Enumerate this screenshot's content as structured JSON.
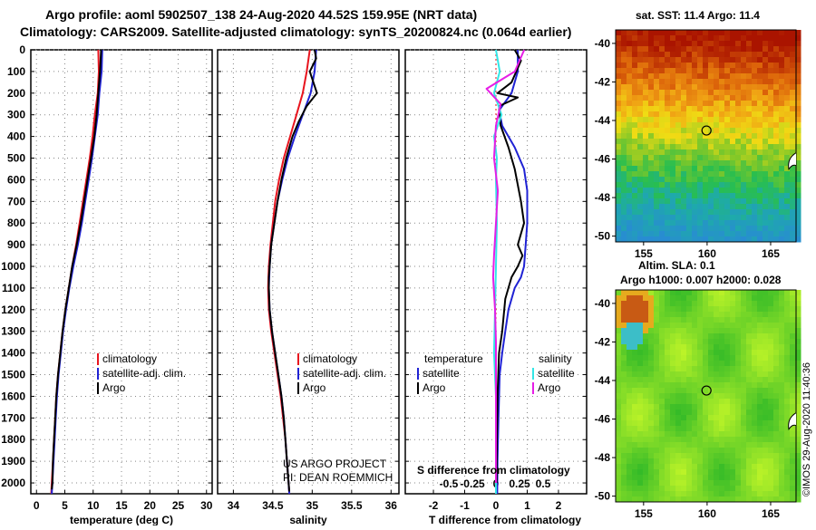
{
  "header": {
    "line1": "Argo profile: aoml 5902507_138 24-Aug-2020 44.52S 159.95E (NRT data)",
    "line2": "Climatology: CARS2009. Satellite-adjusted climatology: synTS_20200824.nc (0.064d earlier)"
  },
  "y_axis": {
    "ticks": [
      "0",
      "100",
      "200",
      "300",
      "400",
      "500",
      "600",
      "700",
      "800",
      "900",
      "1000",
      "1100",
      "1200",
      "1300",
      "1400",
      "1500",
      "1600",
      "1700",
      "1800",
      "1900",
      "2000"
    ]
  },
  "colors": {
    "climatology": "#e8141e",
    "satellite": "#1f22d4",
    "argo": "#000000",
    "sal_satellite": "#33e6e6",
    "sal_argo": "#e61ee6"
  },
  "chart_data": [
    {
      "type": "line",
      "panel": "temperature",
      "xlabel": "temperature (deg C)",
      "xlim": [
        -1,
        31
      ],
      "ylim": [
        2050,
        0
      ],
      "x_ticks": [
        "0",
        "5",
        "10",
        "15",
        "20",
        "25",
        "30"
      ],
      "legend": [
        "climatology",
        "satellite-adj. clim.",
        "Argo"
      ],
      "series": [
        {
          "name": "climatology",
          "points": [
            [
              10.9,
              0
            ],
            [
              11.0,
              100
            ],
            [
              10.8,
              200
            ],
            [
              10.3,
              300
            ],
            [
              9.9,
              400
            ],
            [
              9.4,
              500
            ],
            [
              8.8,
              600
            ],
            [
              8.2,
              700
            ],
            [
              7.6,
              800
            ],
            [
              7.0,
              900
            ],
            [
              6.3,
              1000
            ],
            [
              5.7,
              1100
            ],
            [
              5.1,
              1200
            ],
            [
              4.6,
              1300
            ],
            [
              4.2,
              1400
            ],
            [
              3.8,
              1500
            ],
            [
              3.5,
              1600
            ],
            [
              3.3,
              1700
            ],
            [
              3.1,
              1800
            ],
            [
              2.9,
              1900
            ],
            [
              2.7,
              2000
            ],
            [
              2.6,
              2050
            ]
          ]
        },
        {
          "name": "satellite-adj. clim.",
          "points": [
            [
              11.6,
              0
            ],
            [
              11.5,
              100
            ],
            [
              11.1,
              200
            ],
            [
              10.8,
              300
            ],
            [
              10.3,
              400
            ],
            [
              9.8,
              500
            ],
            [
              9.2,
              600
            ],
            [
              8.6,
              700
            ],
            [
              8.0,
              800
            ],
            [
              7.3,
              900
            ],
            [
              6.5,
              1000
            ],
            [
              5.8,
              1100
            ],
            [
              5.2,
              1200
            ],
            [
              4.7,
              1300
            ],
            [
              4.3,
              1400
            ],
            [
              3.9,
              1500
            ],
            [
              3.6,
              1600
            ],
            [
              3.4,
              1700
            ],
            [
              3.2,
              1800
            ],
            [
              3.0,
              1900
            ],
            [
              2.8,
              2000
            ],
            [
              2.7,
              2050
            ]
          ]
        },
        {
          "name": "Argo",
          "points": [
            [
              11.4,
              0
            ],
            [
              11.3,
              50
            ],
            [
              11.2,
              100
            ],
            [
              10.9,
              200
            ],
            [
              10.6,
              300
            ],
            [
              10.2,
              400
            ],
            [
              9.6,
              500
            ],
            [
              9.0,
              600
            ],
            [
              8.4,
              700
            ],
            [
              7.8,
              800
            ],
            [
              7.1,
              900
            ],
            [
              6.3,
              1000
            ],
            [
              5.7,
              1100
            ],
            [
              5.1,
              1200
            ],
            [
              4.6,
              1300
            ],
            [
              4.2,
              1400
            ],
            [
              3.8,
              1500
            ],
            [
              3.5,
              1600
            ],
            [
              3.3,
              1700
            ],
            [
              3.1,
              1800
            ],
            [
              2.9,
              1900
            ],
            [
              2.8,
              2000
            ],
            [
              2.7,
              2030
            ]
          ]
        }
      ]
    },
    {
      "type": "line",
      "panel": "salinity",
      "xlabel": "salinity",
      "xlim": [
        33.8,
        36.1
      ],
      "ylim": [
        2050,
        0
      ],
      "x_ticks": [
        "34",
        "34.5",
        "35",
        "35.5",
        "36"
      ],
      "legend": [
        "climatology",
        "satellite-adj. clim.",
        "Argo"
      ],
      "annotation_lines": [
        "US ARGO PROJECT",
        "PI: DEAN ROEMMICH"
      ],
      "series": [
        {
          "name": "climatology",
          "points": [
            [
              34.97,
              0
            ],
            [
              34.93,
              100
            ],
            [
              34.88,
              200
            ],
            [
              34.8,
              300
            ],
            [
              34.72,
              400
            ],
            [
              34.64,
              500
            ],
            [
              34.58,
              600
            ],
            [
              34.53,
              700
            ],
            [
              34.5,
              800
            ],
            [
              34.47,
              900
            ],
            [
              34.45,
              1000
            ],
            [
              34.44,
              1100
            ],
            [
              34.45,
              1200
            ],
            [
              34.48,
              1300
            ],
            [
              34.52,
              1400
            ],
            [
              34.56,
              1500
            ],
            [
              34.6,
              1600
            ],
            [
              34.63,
              1700
            ],
            [
              34.66,
              1800
            ],
            [
              34.68,
              1900
            ],
            [
              34.7,
              2000
            ],
            [
              34.71,
              2050
            ]
          ]
        },
        {
          "name": "satellite-adj. clim.",
          "points": [
            [
              35.05,
              0
            ],
            [
              35.03,
              100
            ],
            [
              34.98,
              200
            ],
            [
              34.88,
              300
            ],
            [
              34.78,
              400
            ],
            [
              34.69,
              500
            ],
            [
              34.62,
              600
            ],
            [
              34.56,
              700
            ],
            [
              34.52,
              800
            ],
            [
              34.48,
              900
            ],
            [
              34.46,
              1000
            ],
            [
              34.45,
              1100
            ],
            [
              34.46,
              1200
            ],
            [
              34.49,
              1300
            ],
            [
              34.53,
              1400
            ],
            [
              34.57,
              1500
            ],
            [
              34.61,
              1600
            ],
            [
              34.64,
              1700
            ],
            [
              34.66,
              1800
            ],
            [
              34.68,
              1900
            ],
            [
              34.7,
              2000
            ],
            [
              34.71,
              2050
            ]
          ]
        },
        {
          "name": "Argo",
          "points": [
            [
              35.03,
              0
            ],
            [
              35.05,
              40
            ],
            [
              34.97,
              100
            ],
            [
              35.06,
              200
            ],
            [
              34.93,
              260
            ],
            [
              34.83,
              330
            ],
            [
              34.75,
              400
            ],
            [
              34.67,
              500
            ],
            [
              34.61,
              600
            ],
            [
              34.56,
              700
            ],
            [
              34.52,
              800
            ],
            [
              34.48,
              900
            ],
            [
              34.46,
              1000
            ],
            [
              34.45,
              1050
            ],
            [
              34.45,
              1100
            ],
            [
              34.46,
              1200
            ],
            [
              34.49,
              1300
            ],
            [
              34.53,
              1400
            ],
            [
              34.57,
              1500
            ],
            [
              34.61,
              1600
            ],
            [
              34.64,
              1700
            ],
            [
              34.66,
              1800
            ],
            [
              34.68,
              1900
            ],
            [
              34.7,
              2000
            ],
            [
              34.71,
              2040
            ]
          ]
        }
      ]
    },
    {
      "type": "line",
      "panel": "difference",
      "xlabel": "T difference from climatology",
      "second_xlabel": "S difference from climatology",
      "xlim": [
        -2.9,
        2.9
      ],
      "ylim": [
        2050,
        0
      ],
      "x_ticks": [
        "-2",
        "-1",
        "0",
        "1",
        "2"
      ],
      "s_ticks": [
        "-0.5",
        "-0.25",
        "0",
        "0.25",
        "0.5"
      ],
      "legend_headers": [
        "temperature",
        "salinity"
      ],
      "legend": [
        "satellite",
        "Argo",
        "satellite",
        "Argo"
      ],
      "series": [
        {
          "name": "temperature satellite",
          "points": [
            [
              0.7,
              0
            ],
            [
              0.7,
              100
            ],
            [
              0.5,
              200
            ],
            [
              0.1,
              280
            ],
            [
              0.2,
              350
            ],
            [
              0.6,
              450
            ],
            [
              0.9,
              550
            ],
            [
              1.0,
              650
            ],
            [
              1.0,
              800
            ],
            [
              0.95,
              900
            ],
            [
              0.9,
              1000
            ],
            [
              0.8,
              1050
            ],
            [
              0.6,
              1100
            ],
            [
              0.4,
              1200
            ],
            [
              0.3,
              1300
            ],
            [
              0.2,
              1400
            ],
            [
              0.12,
              1500
            ],
            [
              0.08,
              1700
            ],
            [
              0.05,
              1900
            ],
            [
              0.04,
              2050
            ]
          ]
        },
        {
          "name": "temperature Argo",
          "points": [
            [
              0.6,
              0
            ],
            [
              0.8,
              50
            ],
            [
              0.5,
              150
            ],
            [
              0.05,
              200
            ],
            [
              0.7,
              220
            ],
            [
              0.1,
              260
            ],
            [
              0.15,
              350
            ],
            [
              0.4,
              450
            ],
            [
              0.6,
              550
            ],
            [
              0.8,
              700
            ],
            [
              0.9,
              800
            ],
            [
              0.7,
              900
            ],
            [
              0.85,
              950
            ],
            [
              0.7,
              1000
            ],
            [
              0.5,
              1050
            ],
            [
              0.3,
              1150
            ],
            [
              0.2,
              1300
            ],
            [
              0.1,
              1400
            ],
            [
              0.05,
              1600
            ],
            [
              0.03,
              1800
            ],
            [
              0.02,
              2000
            ]
          ]
        },
        {
          "name": "salinity satellite",
          "points": [
            [
              0,
              0
            ],
            [
              0.04,
              100
            ],
            [
              -0.02,
              200
            ],
            [
              0.06,
              300
            ],
            [
              -0.02,
              400
            ],
            [
              0.01,
              500
            ],
            [
              0,
              600
            ],
            [
              0.01,
              800
            ],
            [
              0,
              1000
            ],
            [
              -0.01,
              1200
            ],
            [
              -0.02,
              1400
            ],
            [
              0,
              1600
            ],
            [
              0,
              2050
            ]
          ]
        },
        {
          "name": "salinity Argo",
          "points": [
            [
              0.3,
              0
            ],
            [
              0.2,
              100
            ],
            [
              -0.1,
              180
            ],
            [
              0.05,
              250
            ],
            [
              0.0,
              350
            ],
            [
              -0.02,
              500
            ],
            [
              0.02,
              650
            ],
            [
              0.0,
              800
            ],
            [
              -0.02,
              950
            ],
            [
              -0.03,
              1050
            ],
            [
              -0.01,
              1200
            ],
            [
              0.0,
              1350
            ],
            [
              0.0,
              1500
            ],
            [
              0,
              2000
            ]
          ]
        }
      ]
    },
    {
      "type": "heatmap",
      "panel": "sst_map",
      "title": "sat. SST: 11.4 Argo: 11.4",
      "x_ticks": [
        "155",
        "160",
        "165"
      ],
      "y_ticks": [
        "-40",
        "-42",
        "-44",
        "-46",
        "-48",
        "-50"
      ],
      "xlim": [
        152.8,
        167
      ],
      "ylim": [
        -50.3,
        -39.3
      ],
      "marker": {
        "lon": 159.95,
        "lat": -44.52
      }
    },
    {
      "type": "heatmap",
      "panel": "sla_map",
      "title": "Altim. SLA: 0.1",
      "subtitle": "Argo h1000: 0.007 h2000: 0.028",
      "x_ticks": [
        "155",
        "160",
        "165"
      ],
      "y_ticks": [
        "-40",
        "-42",
        "-44",
        "-46",
        "-48",
        "-50"
      ],
      "xlim": [
        152.8,
        167
      ],
      "ylim": [
        -50.3,
        -39.3
      ],
      "marker": {
        "lon": 159.95,
        "lat": -44.52
      }
    }
  ],
  "credit": "©IMOS 29-Aug-2020 11:40:36"
}
